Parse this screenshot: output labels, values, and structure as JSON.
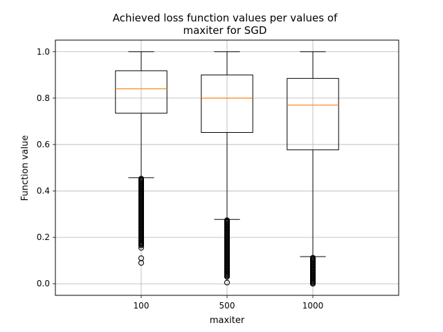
{
  "chart_data": {
    "type": "boxplot",
    "title_lines": [
      "Achieved loss function values per values of",
      "maxiter for SGD"
    ],
    "xlabel": "maxiter",
    "ylabel": "Function value",
    "ylim": [
      -0.05,
      1.05
    ],
    "yticks": [
      0.0,
      0.2,
      0.4,
      0.6,
      0.8,
      1.0
    ],
    "ytick_labels": [
      "0.0",
      "0.2",
      "0.4",
      "0.6",
      "0.8",
      "1.0"
    ],
    "grid": true,
    "median_color": "#ff7f0e",
    "box_color": "#000000",
    "grid_color": "#b0b0b0",
    "categories": [
      "100",
      "500",
      "1000"
    ],
    "boxes": [
      {
        "category": "100",
        "whisker_low": 0.457,
        "q1": 0.735,
        "median": 0.84,
        "q3": 0.918,
        "whisker_high": 1.0,
        "outlier_range": [
          0.165,
          0.455
        ],
        "outliers": [
          0.09,
          0.11,
          0.155
        ]
      },
      {
        "category": "500",
        "whisker_low": 0.277,
        "q1": 0.652,
        "median": 0.8,
        "q3": 0.9,
        "whisker_high": 1.0,
        "outlier_range": [
          0.03,
          0.275
        ],
        "outliers": [
          0.005
        ]
      },
      {
        "category": "1000",
        "whisker_low": 0.117,
        "q1": 0.577,
        "median": 0.77,
        "q3": 0.885,
        "whisker_high": 1.0,
        "outlier_range": [
          0.0,
          0.115
        ],
        "outliers": []
      }
    ]
  }
}
